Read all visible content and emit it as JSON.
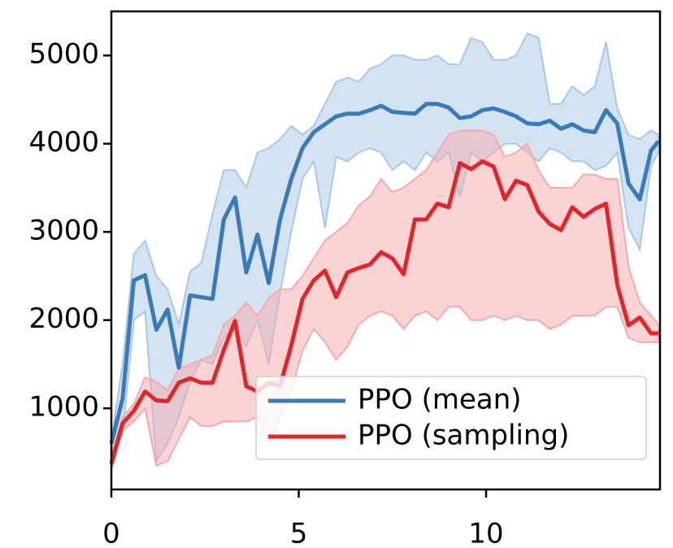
{
  "chart_data": {
    "type": "line",
    "x": [
      0,
      0.3,
      0.6,
      0.9,
      1.2,
      1.5,
      1.8,
      2.1,
      2.4,
      2.7,
      3.0,
      3.3,
      3.6,
      3.9,
      4.2,
      4.5,
      4.8,
      5.1,
      5.4,
      5.7,
      6.0,
      6.3,
      6.6,
      6.9,
      7.2,
      7.5,
      7.8,
      8.1,
      8.4,
      8.7,
      9.0,
      9.3,
      9.6,
      9.9,
      10.2,
      10.5,
      10.8,
      11.1,
      11.4,
      11.7,
      12.0,
      12.3,
      12.6,
      12.9,
      13.2,
      13.5,
      13.8,
      14.1,
      14.4,
      14.6
    ],
    "series": [
      {
        "name": "PPO (mean)",
        "color": "#3a7ab8",
        "band_color": "#a9c8e5",
        "values": [
          600,
          1110,
          2450,
          2510,
          1890,
          2120,
          1460,
          2280,
          2260,
          2240,
          3140,
          3390,
          2540,
          2970,
          2420,
          3140,
          3600,
          3950,
          4130,
          4220,
          4310,
          4340,
          4340,
          4380,
          4430,
          4360,
          4350,
          4340,
          4450,
          4450,
          4410,
          4290,
          4310,
          4380,
          4400,
          4360,
          4310,
          4230,
          4220,
          4260,
          4170,
          4220,
          4150,
          4130,
          4380,
          4230,
          3550,
          3370,
          3920,
          4030
        ],
        "upper": [
          650,
          1500,
          2750,
          2900,
          2500,
          2350,
          1950,
          2550,
          2650,
          3200,
          3700,
          3700,
          3500,
          3900,
          3950,
          4050,
          4200,
          4100,
          4200,
          4450,
          4700,
          4750,
          4700,
          4850,
          4900,
          5000,
          5000,
          4950,
          4950,
          5000,
          4900,
          4900,
          5200,
          5150,
          4950,
          4950,
          5000,
          5250,
          5200,
          4450,
          4450,
          4650,
          4550,
          4650,
          5150,
          4400,
          4100,
          4050,
          4150,
          4100
        ],
        "lower": [
          520,
          700,
          2000,
          2100,
          400,
          600,
          900,
          1300,
          1550,
          1500,
          1800,
          1900,
          1700,
          2000,
          1500,
          2300,
          3000,
          3600,
          3800,
          3050,
          3850,
          3800,
          3900,
          3950,
          3900,
          3700,
          3800,
          3700,
          3900,
          3800,
          3900,
          3400,
          3900,
          3800,
          3900,
          4000,
          4000,
          3900,
          3800,
          3950,
          3900,
          3800,
          3800,
          3700,
          3750,
          3900,
          3050,
          2800,
          3750,
          3900
        ]
      },
      {
        "name": "PPO (sampling)",
        "color": "#e0262a",
        "band_color": "#f5a9ab",
        "values": [
          370,
          830,
          970,
          1190,
          1090,
          1080,
          1290,
          1340,
          1290,
          1290,
          1660,
          1990,
          1250,
          1190,
          1290,
          1250,
          1710,
          2240,
          2450,
          2560,
          2260,
          2540,
          2590,
          2630,
          2770,
          2700,
          2520,
          3140,
          3140,
          3320,
          3280,
          3780,
          3710,
          3800,
          3740,
          3370,
          3580,
          3530,
          3230,
          3090,
          3020,
          3280,
          3170,
          3260,
          3320,
          2400,
          1940,
          2030,
          1850,
          1850
        ],
        "upper": [
          450,
          900,
          1050,
          1350,
          1300,
          1200,
          1450,
          1500,
          1550,
          1600,
          1950,
          2050,
          2200,
          2050,
          2250,
          2350,
          2350,
          2500,
          2700,
          2900,
          3000,
          3100,
          3300,
          3400,
          3600,
          3450,
          3500,
          3600,
          3700,
          3900,
          4100,
          4150,
          4150,
          4150,
          4100,
          3850,
          3900,
          4000,
          3700,
          3500,
          3500,
          3500,
          3650,
          3650,
          3600,
          3600,
          2600,
          2200,
          2050,
          1950
        ],
        "lower": [
          300,
          750,
          850,
          1000,
          350,
          400,
          650,
          900,
          800,
          800,
          850,
          850,
          850,
          900,
          600,
          900,
          1200,
          1650,
          1900,
          1750,
          1550,
          1700,
          1950,
          2050,
          2100,
          2050,
          1900,
          2050,
          2100,
          2000,
          2150,
          2150,
          2000,
          2000,
          2050,
          2000,
          2050,
          2000,
          2000,
          1900,
          1950,
          2050,
          2050,
          2050,
          2150,
          2150,
          1800,
          1750,
          1750,
          1750
        ]
      }
    ],
    "xlim": [
      0,
      14.64
    ],
    "ylim": [
      80,
      5500
    ],
    "xticks": [
      0,
      5,
      10
    ],
    "yticks": [
      1000,
      2000,
      3000,
      4000,
      5000
    ],
    "legend": "lower right"
  }
}
